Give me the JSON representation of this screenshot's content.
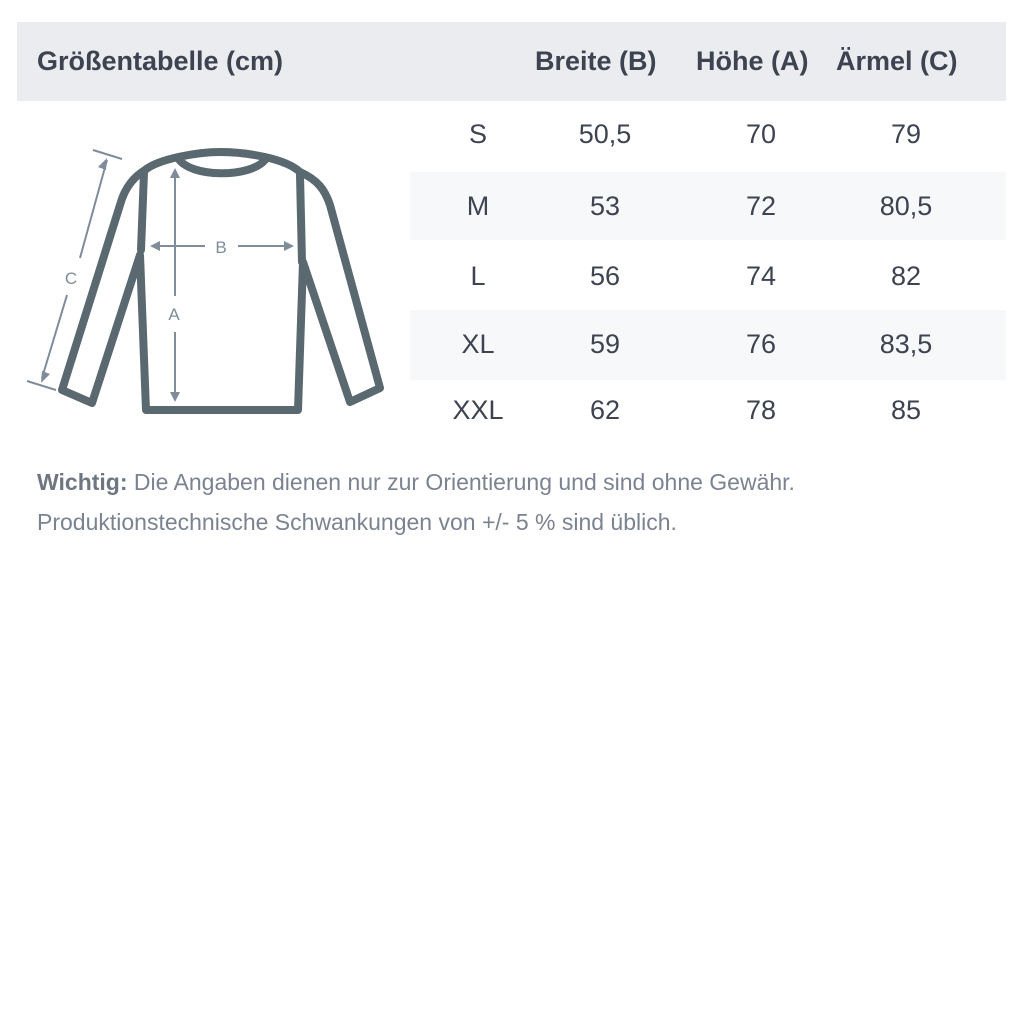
{
  "title": "Größentabelle (cm)",
  "columns": [
    "Breite (B)",
    "Höhe (A)",
    "Ärmel (C)"
  ],
  "rows": [
    {
      "size": "S",
      "breite": "50,5",
      "hoehe": "70",
      "aermel": "79"
    },
    {
      "size": "M",
      "breite": "53",
      "hoehe": "72",
      "aermel": "80,5"
    },
    {
      "size": "L",
      "breite": "56",
      "hoehe": "74",
      "aermel": "82"
    },
    {
      "size": "XL",
      "breite": "59",
      "hoehe": "76",
      "aermel": "83,5"
    },
    {
      "size": "XXL",
      "breite": "62",
      "hoehe": "78",
      "aermel": "85"
    }
  ],
  "diagram": {
    "label_a": "A",
    "label_b": "B",
    "label_c": "C"
  },
  "note": {
    "bold": "Wichtig:",
    "line1": " Die Angaben dienen nur zur Orientierung und sind ohne Gewähr.",
    "line2": "Produktionstechnische Schwankungen von +/- 5 % sind üblich."
  },
  "colors": {
    "header_bg": "#ebecf0",
    "stripe_bg": "#f7f8fa",
    "text": "#3d4350",
    "sweater": "#5a6870",
    "arrows": "#7f8c99"
  }
}
